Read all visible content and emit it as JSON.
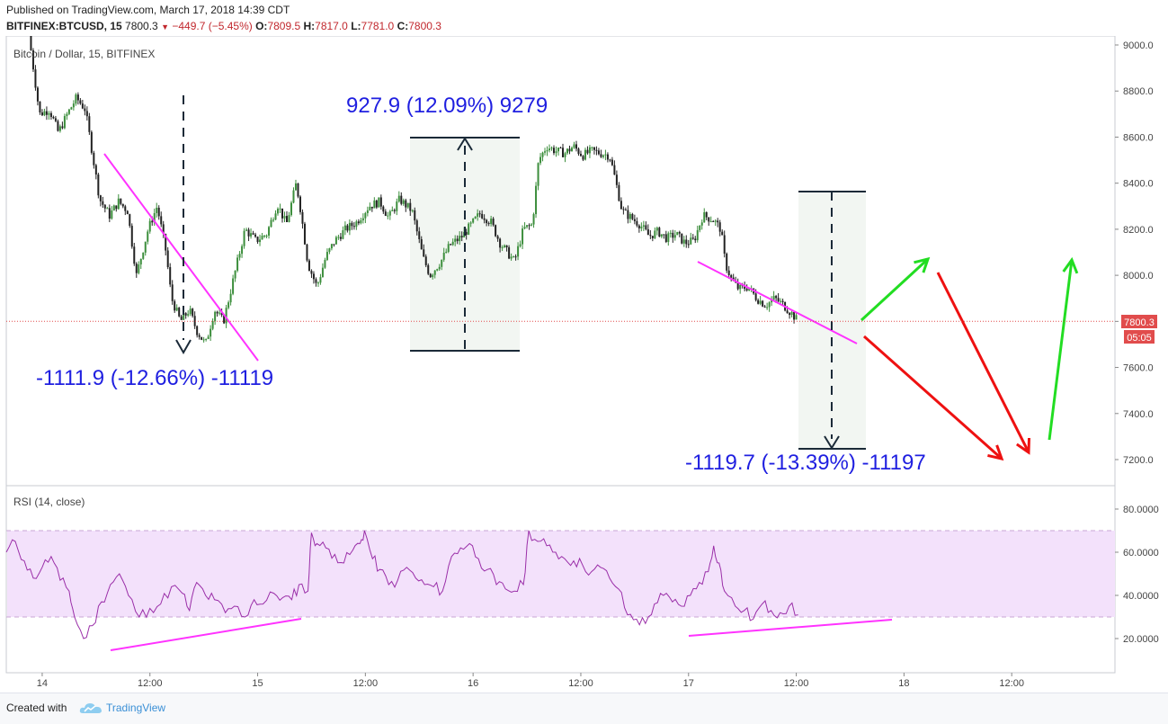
{
  "header": {
    "published": "Published on TradingView.com, March 17, 2018 14:39 CDT",
    "symbol": "BITFINEX:BTCUSD, 15",
    "last": "7800.3",
    "change": "−449.7 (−5.45%)",
    "open_label": "O:",
    "open": "7809.5",
    "high_label": "H:",
    "high": "7817.0",
    "low_label": "L:",
    "low": "7781.0",
    "close_label": "C:",
    "close": "7800.3"
  },
  "footer": {
    "created_with": "Created with",
    "brand": "TradingView"
  },
  "colors": {
    "up": "#3c8e3c",
    "down": "#222222",
    "annotation_text": "#1f1fe0",
    "magenta": "#ff33ff",
    "green_arrow": "#22dd22",
    "red_arrow": "#ee1111",
    "rsi_line": "#9a2ea8",
    "rsi_band": "#f3e1fb",
    "price_line": "#e14c4c"
  },
  "chart_data": [
    {
      "type": "candlestick",
      "title": "Bitcoin / Dollar, 15, BITFINEX",
      "y_axis_side": "right",
      "ylim": [
        7080,
        9080
      ],
      "yticks": [
        "7200.0",
        "7400.0",
        "7600.0",
        "7800.0",
        "8000.0",
        "8200.0",
        "8400.0",
        "8600.0",
        "8800.0",
        "9000.0"
      ],
      "yticks_values": [
        7200,
        7400,
        7600,
        7800,
        8000,
        8200,
        8400,
        8600,
        8800,
        9000
      ],
      "x_range_hours": [
        -4.0,
        119.5
      ],
      "xticks": [
        {
          "label": "14",
          "h": 0
        },
        {
          "label": "12:00",
          "h": 12
        },
        {
          "label": "15",
          "h": 24
        },
        {
          "label": "12:00",
          "h": 36
        },
        {
          "label": "16",
          "h": 48
        },
        {
          "label": "12:00",
          "h": 60
        },
        {
          "label": "17",
          "h": 72
        },
        {
          "label": "12:00",
          "h": 84
        },
        {
          "label": "18",
          "h": 96
        },
        {
          "label": "12:00",
          "h": 108
        }
      ],
      "price_path": [
        [
          -1.5,
          9050
        ],
        [
          -0.3,
          8700
        ],
        [
          0.8,
          8720
        ],
        [
          1.8,
          8620
        ],
        [
          2.8,
          8700
        ],
        [
          3.8,
          8770
        ],
        [
          4.8,
          8720
        ],
        [
          5.3,
          8600
        ],
        [
          6.4,
          8330
        ],
        [
          7.5,
          8260
        ],
        [
          8.5,
          8320
        ],
        [
          9.5,
          8280
        ],
        [
          10.5,
          8000
        ],
        [
          11.8,
          8200
        ],
        [
          12.8,
          8300
        ],
        [
          13.8,
          8100
        ],
        [
          14.4,
          7900
        ],
        [
          15.4,
          7800
        ],
        [
          16.4,
          7850
        ],
        [
          17.2,
          7760
        ],
        [
          18.2,
          7700
        ],
        [
          19.2,
          7850
        ],
        [
          20.2,
          7800
        ],
        [
          21.4,
          8000
        ],
        [
          22.6,
          8200
        ],
        [
          23.8,
          8150
        ],
        [
          25.0,
          8180
        ],
        [
          26.2,
          8310
        ],
        [
          27.2,
          8220
        ],
        [
          28.3,
          8400
        ],
        [
          28.8,
          8280
        ],
        [
          29.6,
          8050
        ],
        [
          30.6,
          7950
        ],
        [
          31.6,
          8080
        ],
        [
          32.6,
          8150
        ],
        [
          33.8,
          8200
        ],
        [
          35.0,
          8230
        ],
        [
          36.4,
          8300
        ],
        [
          37.6,
          8320
        ],
        [
          38.6,
          8250
        ],
        [
          39.8,
          8330
        ],
        [
          41.2,
          8280
        ],
        [
          42.4,
          8080
        ],
        [
          43.2,
          8000
        ],
        [
          44.4,
          8060
        ],
        [
          45.4,
          8130
        ],
        [
          46.8,
          8170
        ],
        [
          47.8,
          8220
        ],
        [
          48.8,
          8270
        ],
        [
          50.0,
          8230
        ],
        [
          51.0,
          8140
        ],
        [
          52.0,
          8090
        ],
        [
          52.6,
          8060
        ],
        [
          53.6,
          8200
        ],
        [
          54.6,
          8220
        ],
        [
          55.3,
          8500
        ],
        [
          56.2,
          8560
        ],
        [
          57.2,
          8540
        ],
        [
          58.2,
          8530
        ],
        [
          59.2,
          8560
        ],
        [
          60.2,
          8520
        ],
        [
          61.2,
          8540
        ],
        [
          62.2,
          8530
        ],
        [
          63.2,
          8520
        ],
        [
          63.7,
          8440
        ],
        [
          64.6,
          8280
        ],
        [
          65.6,
          8250
        ],
        [
          66.6,
          8220
        ],
        [
          67.6,
          8170
        ],
        [
          68.6,
          8190
        ],
        [
          69.6,
          8160
        ],
        [
          70.6,
          8180
        ],
        [
          71.6,
          8140
        ],
        [
          72.6,
          8150
        ],
        [
          73.6,
          8260
        ],
        [
          74.8,
          8240
        ],
        [
          75.6,
          8200
        ],
        [
          76.1,
          8050
        ],
        [
          76.8,
          7980
        ],
        [
          77.6,
          7940
        ],
        [
          78.6,
          7950
        ],
        [
          79.6,
          7900
        ],
        [
          80.6,
          7870
        ],
        [
          81.6,
          7900
        ],
        [
          82.6,
          7870
        ],
        [
          83.6,
          7830
        ],
        [
          84.2,
          7800
        ]
      ],
      "rsi_path": [
        [
          -4.0,
          60
        ],
        [
          -3.0,
          65
        ],
        [
          -2.0,
          56
        ],
        [
          -1.0,
          48
        ],
        [
          0.0,
          53
        ],
        [
          1.0,
          58
        ],
        [
          2.0,
          47
        ],
        [
          3.0,
          42
        ],
        [
          3.6,
          30
        ],
        [
          4.6,
          20
        ],
        [
          5.6,
          26
        ],
        [
          6.6,
          37
        ],
        [
          7.6,
          45
        ],
        [
          8.6,
          50
        ],
        [
          9.6,
          40
        ],
        [
          10.8,
          30
        ],
        [
          12.0,
          34
        ],
        [
          13.2,
          36
        ],
        [
          14.4,
          44
        ],
        [
          15.6,
          41
        ],
        [
          16.4,
          33
        ],
        [
          17.2,
          46
        ],
        [
          18.2,
          40
        ],
        [
          19.2,
          38
        ],
        [
          20.4,
          32
        ],
        [
          21.4,
          35
        ],
        [
          22.6,
          30
        ],
        [
          23.6,
          38
        ],
        [
          24.6,
          36
        ],
        [
          25.8,
          41
        ],
        [
          26.8,
          39
        ],
        [
          27.8,
          38
        ],
        [
          28.6,
          45
        ],
        [
          29.6,
          42
        ],
        [
          30.0,
          69
        ],
        [
          30.6,
          64
        ],
        [
          31.6,
          62
        ],
        [
          32.6,
          59
        ],
        [
          33.6,
          55
        ],
        [
          34.6,
          61
        ],
        [
          35.4,
          64
        ],
        [
          35.9,
          70
        ],
        [
          36.8,
          57
        ],
        [
          37.6,
          52
        ],
        [
          38.6,
          45
        ],
        [
          39.6,
          47
        ],
        [
          40.6,
          53
        ],
        [
          41.6,
          48
        ],
        [
          42.6,
          45
        ],
        [
          43.6,
          44
        ],
        [
          44.6,
          42
        ],
        [
          45.6,
          58
        ],
        [
          46.6,
          62
        ],
        [
          47.6,
          64
        ],
        [
          48.6,
          57
        ],
        [
          49.6,
          52
        ],
        [
          50.6,
          45
        ],
        [
          51.6,
          43
        ],
        [
          52.6,
          42
        ],
        [
          53.6,
          45
        ],
        [
          54.2,
          70
        ],
        [
          55.2,
          65
        ],
        [
          56.2,
          63
        ],
        [
          57.2,
          60
        ],
        [
          58.2,
          57
        ],
        [
          59.2,
          56
        ],
        [
          60.2,
          54
        ],
        [
          61.2,
          51
        ],
        [
          62.2,
          53
        ],
        [
          63.2,
          48
        ],
        [
          64.2,
          43
        ],
        [
          65.2,
          31
        ],
        [
          66.2,
          29
        ],
        [
          67.2,
          27
        ],
        [
          68.2,
          36
        ],
        [
          69.2,
          40
        ],
        [
          70.2,
          37
        ],
        [
          71.2,
          35
        ],
        [
          72.2,
          40
        ],
        [
          73.2,
          46
        ],
        [
          74.2,
          51
        ],
        [
          74.8,
          63
        ],
        [
          75.4,
          55
        ],
        [
          76.0,
          42
        ],
        [
          77.2,
          35
        ],
        [
          78.2,
          33
        ],
        [
          79.2,
          29
        ],
        [
          80.2,
          36
        ],
        [
          81.2,
          33
        ],
        [
          82.2,
          32
        ],
        [
          83.2,
          35
        ],
        [
          84.2,
          31
        ]
      ],
      "annotations": [
        {
          "text": "-1111.9 (-12.66%) -11119"
        },
        {
          "text": "927.9 (12.09%) 9279"
        },
        {
          "text": "-1119.7 (-13.39%) -11197"
        }
      ],
      "last_price_label": "7800.3",
      "countdown_label": "05:05",
      "last_price": 7800.3,
      "grid": false
    },
    {
      "type": "line",
      "title": "RSI (14, close)",
      "ylim": [
        10,
        85
      ],
      "yticks": [
        "20.0000",
        "40.0000",
        "60.0000",
        "80.0000"
      ],
      "yticks_values": [
        20,
        40,
        60,
        80
      ],
      "bands": [
        30,
        70
      ]
    }
  ]
}
